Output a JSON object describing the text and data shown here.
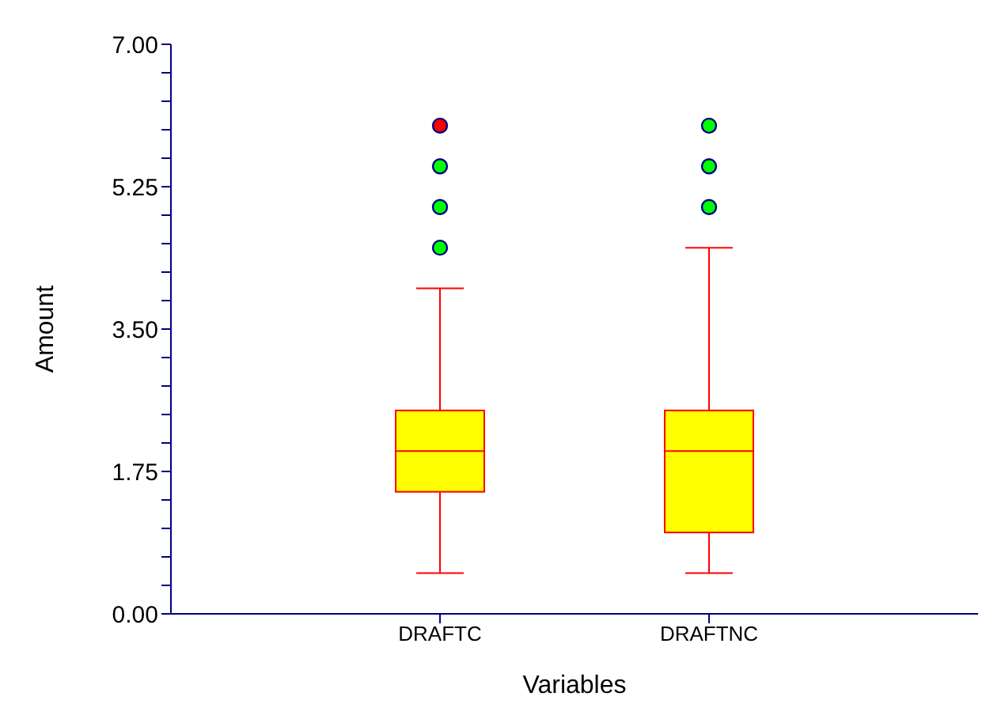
{
  "chart_data": {
    "type": "box",
    "xlabel": "Variables",
    "ylabel": "Amount",
    "categories": [
      "DRAFTC",
      "DRAFTNC"
    ],
    "ylim": [
      0,
      7
    ],
    "yticks": [
      {
        "value": 0,
        "label": "0.00"
      },
      {
        "value": 0.35,
        "label": null
      },
      {
        "value": 0.7,
        "label": null
      },
      {
        "value": 1.05,
        "label": null
      },
      {
        "value": 1.4,
        "label": null
      },
      {
        "value": 1.75,
        "label": "1.75"
      },
      {
        "value": 2.1,
        "label": null
      },
      {
        "value": 2.45,
        "label": null
      },
      {
        "value": 2.8,
        "label": null
      },
      {
        "value": 3.15,
        "label": null
      },
      {
        "value": 3.5,
        "label": "3.50"
      },
      {
        "value": 3.85,
        "label": null
      },
      {
        "value": 4.2,
        "label": null
      },
      {
        "value": 4.55,
        "label": null
      },
      {
        "value": 4.9,
        "label": null
      },
      {
        "value": 5.25,
        "label": "5.25"
      },
      {
        "value": 5.6,
        "label": null
      },
      {
        "value": 5.95,
        "label": null
      },
      {
        "value": 6.3,
        "label": null
      },
      {
        "value": 6.65,
        "label": null
      },
      {
        "value": 7,
        "label": "7.00"
      }
    ],
    "grid": false,
    "legend": false,
    "marker": "circle",
    "series": [
      {
        "type": "box",
        "color": "#ffff00",
        "boxes": [
          {
            "low": 0.5,
            "q1": 1.5,
            "median": 2.0,
            "q3": 2.5,
            "high": 4.0
          },
          {
            "low": 0.5,
            "q1": 1.0,
            "median": 2.0,
            "q3": 2.5,
            "high": 4.5
          }
        ]
      },
      {
        "type": "scatter",
        "color": "#00ff00",
        "x": [
          "DRAFTC",
          "DRAFTC",
          "DRAFTC",
          "DRAFTNC",
          "DRAFTNC",
          "DRAFTNC"
        ],
        "values": [
          4.5,
          5.0,
          5.5,
          5.0,
          5.5,
          6.0
        ]
      },
      {
        "type": "scatter",
        "color": "#ff0000",
        "x": [
          "DRAFTC"
        ],
        "values": [
          6.0
        ]
      }
    ]
  }
}
